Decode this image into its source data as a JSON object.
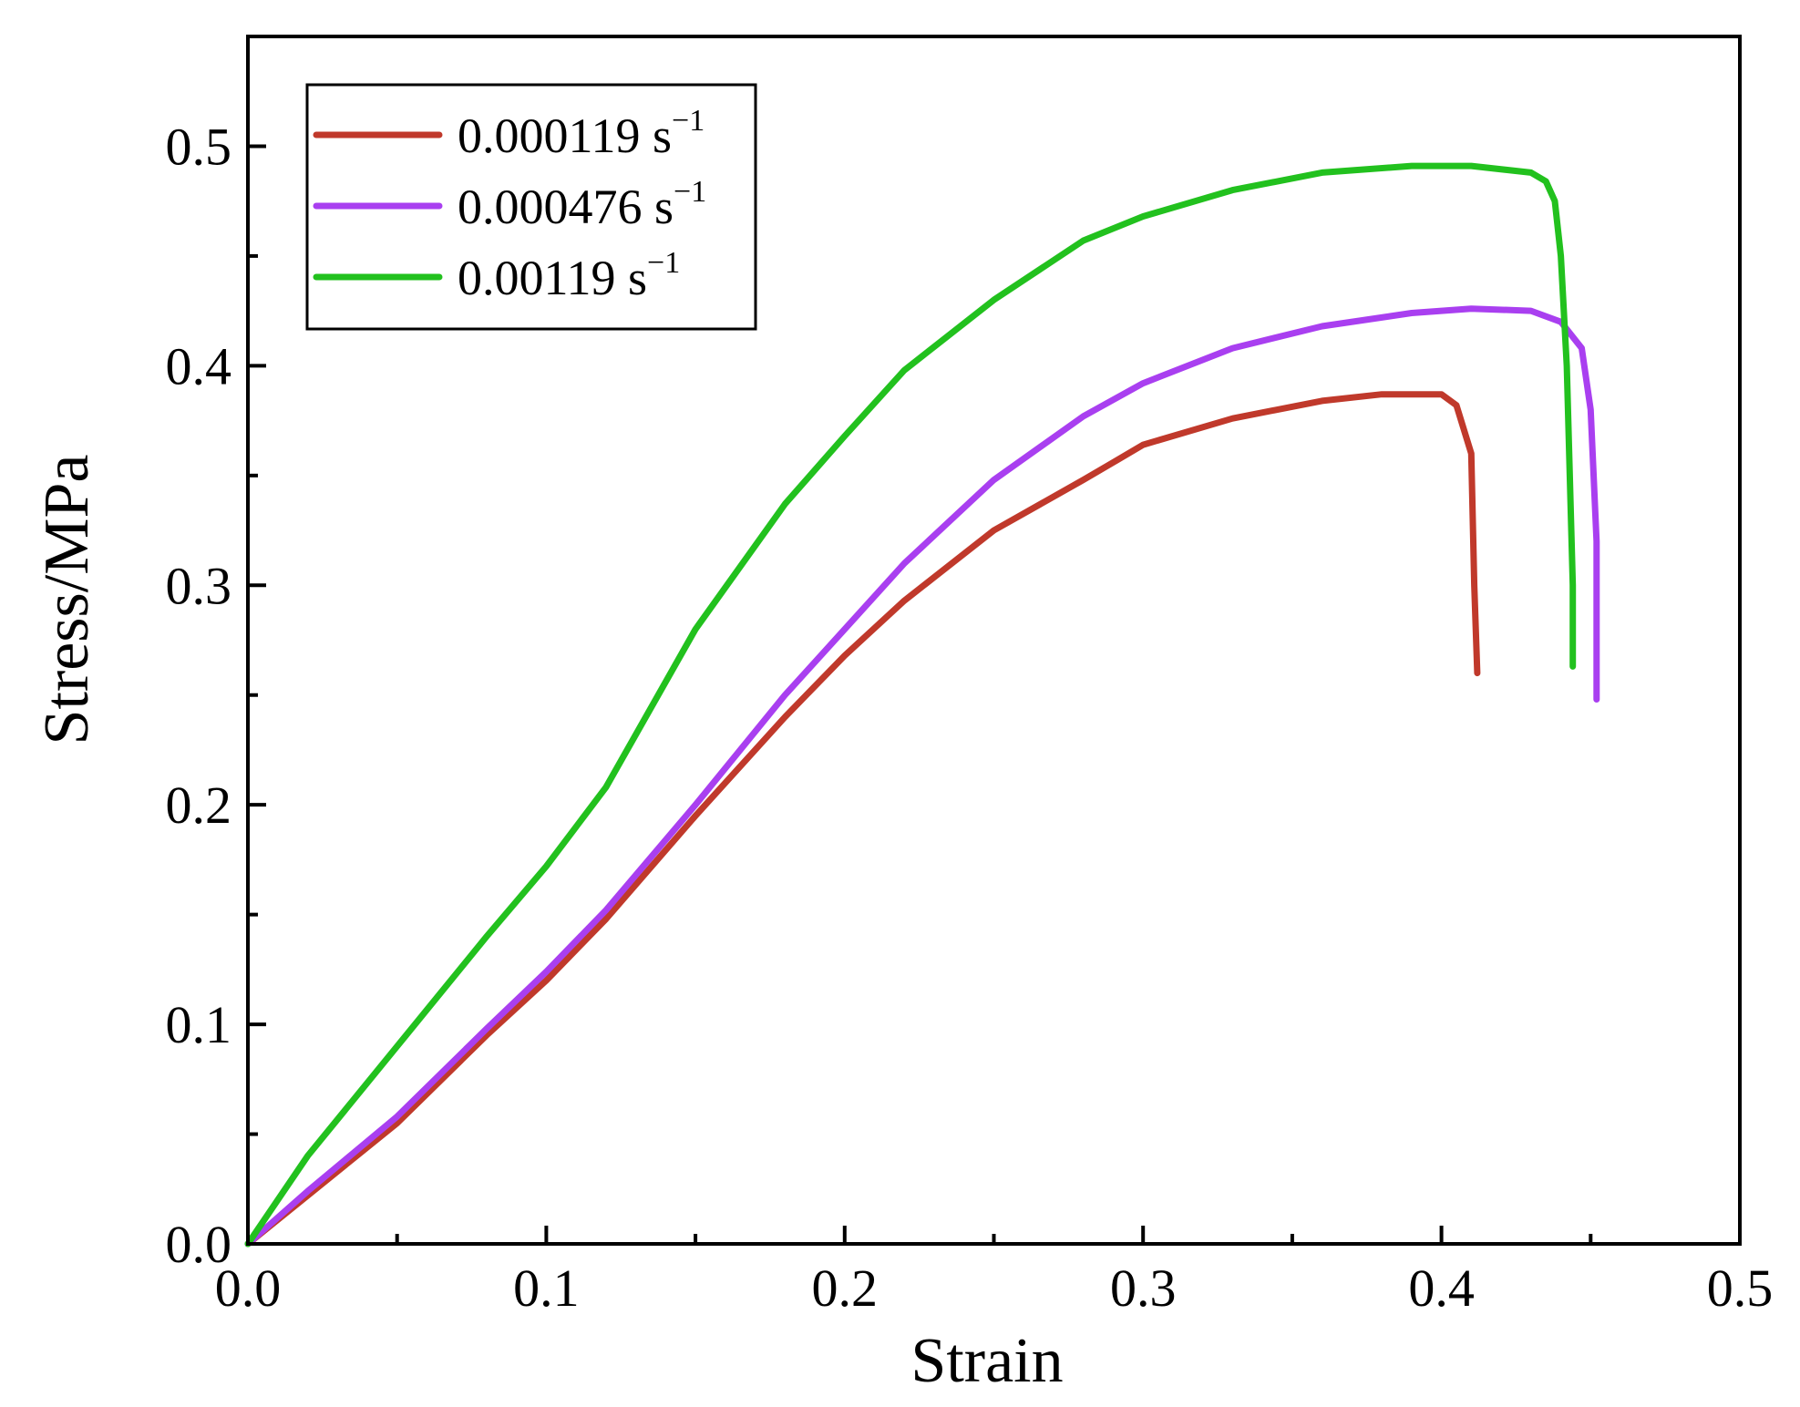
{
  "chart_data": {
    "type": "line",
    "title": "",
    "xlabel": "Strain",
    "ylabel": "Stress/MPa",
    "xlim": [
      0.0,
      0.5
    ],
    "ylim": [
      0.0,
      0.55
    ],
    "xticks": [
      "0.0",
      "0.1",
      "0.2",
      "0.3",
      "0.4",
      "0.5"
    ],
    "yticks": [
      "0.0",
      "0.1",
      "0.2",
      "0.3",
      "0.4",
      "0.5"
    ],
    "grid": false,
    "legend_position": "top-left",
    "series": [
      {
        "name": "0.000119 s",
        "unit_exponent": "−1",
        "color": "#C0392B",
        "x": [
          0.0,
          0.02,
          0.05,
          0.08,
          0.1,
          0.12,
          0.15,
          0.18,
          0.2,
          0.22,
          0.25,
          0.28,
          0.29,
          0.3,
          0.33,
          0.36,
          0.38,
          0.4,
          0.405,
          0.41,
          0.411,
          0.412
        ],
        "y": [
          0.0,
          0.022,
          0.055,
          0.095,
          0.12,
          0.148,
          0.195,
          0.24,
          0.268,
          0.293,
          0.325,
          0.348,
          0.356,
          0.364,
          0.376,
          0.384,
          0.387,
          0.387,
          0.382,
          0.36,
          0.3,
          0.26
        ]
      },
      {
        "name": "0.000476 s",
        "unit_exponent": "−1",
        "color": "#A93FF0",
        "x": [
          0.0,
          0.02,
          0.05,
          0.08,
          0.1,
          0.12,
          0.15,
          0.18,
          0.2,
          0.22,
          0.25,
          0.28,
          0.3,
          0.33,
          0.36,
          0.39,
          0.41,
          0.43,
          0.44,
          0.447,
          0.45,
          0.452,
          0.452
        ],
        "y": [
          0.0,
          0.024,
          0.058,
          0.098,
          0.124,
          0.152,
          0.2,
          0.25,
          0.28,
          0.31,
          0.348,
          0.377,
          0.392,
          0.408,
          0.418,
          0.424,
          0.426,
          0.425,
          0.42,
          0.408,
          0.38,
          0.32,
          0.248
        ]
      },
      {
        "name": "0.00119 s",
        "unit_exponent": "−1",
        "color": "#22C11E",
        "x": [
          0.0,
          0.02,
          0.05,
          0.08,
          0.1,
          0.12,
          0.15,
          0.18,
          0.2,
          0.22,
          0.25,
          0.28,
          0.3,
          0.33,
          0.36,
          0.39,
          0.41,
          0.43,
          0.435,
          0.438,
          0.44,
          0.442,
          0.443,
          0.444,
          0.444
        ],
        "y": [
          0.0,
          0.04,
          0.09,
          0.14,
          0.172,
          0.208,
          0.28,
          0.337,
          0.368,
          0.398,
          0.43,
          0.457,
          0.468,
          0.48,
          0.488,
          0.491,
          0.491,
          0.488,
          0.484,
          0.475,
          0.45,
          0.4,
          0.35,
          0.3,
          0.263
        ]
      }
    ]
  }
}
